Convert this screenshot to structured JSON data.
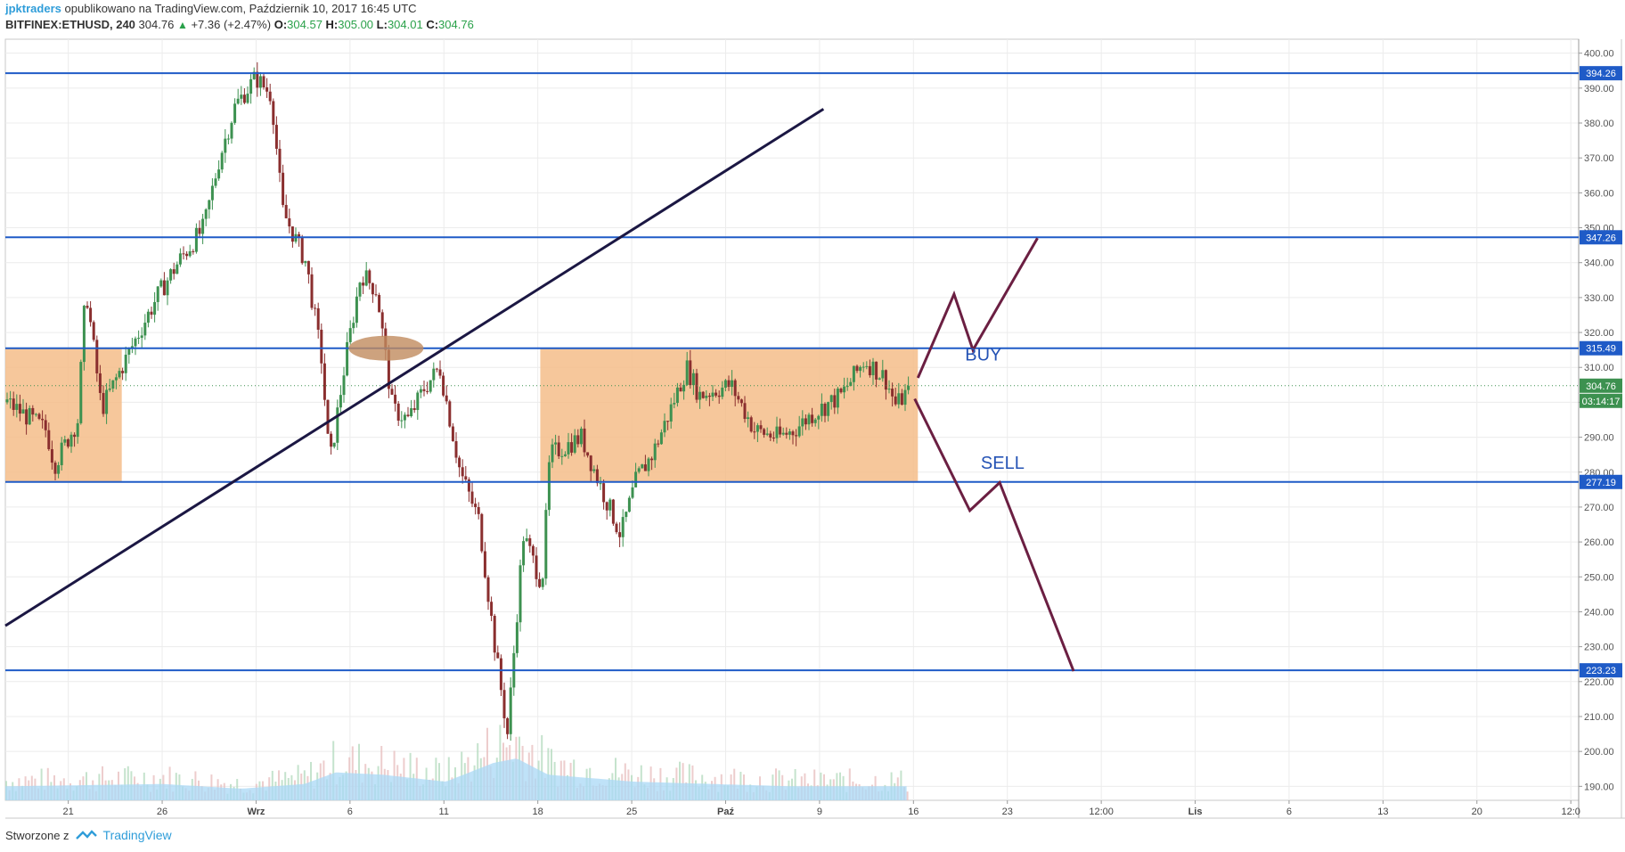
{
  "header": {
    "author": "jpktraders",
    "published": "opublikowano na TradingView.com, Październik 10, 2017 16:45 UTC",
    "symbol": "BITFINEX:ETHUSD, 240",
    "last": "304.76",
    "change": "+7.36 (+2.47%)",
    "o_label": "O:",
    "o": "304.57",
    "h_label": "H:",
    "h": "305.00",
    "l_label": "L:",
    "l": "304.01",
    "c_label": "C:",
    "c": "304.76"
  },
  "footer": {
    "made_with": "Stworzone z",
    "brand": "TradingView"
  },
  "chart_data": {
    "type": "candlestick",
    "symbol": "BITFINEX:ETHUSD",
    "interval": "240",
    "ylim": [
      186,
      404
    ],
    "y_ticks": [
      190,
      200,
      210,
      220,
      230,
      240,
      250,
      260,
      270,
      280,
      290,
      300,
      310,
      320,
      330,
      340,
      350,
      360,
      370,
      380,
      390,
      400
    ],
    "x_tick_labels": [
      "21",
      "26",
      "Wrz",
      "6",
      "11",
      "18",
      "25",
      "Paź",
      "9",
      "16",
      "23",
      "12:00",
      "Lis",
      "6",
      "13",
      "20",
      "12:0"
    ],
    "x_tick_bold": [
      "Wrz",
      "Paź",
      "Lis"
    ],
    "grid": true,
    "colors": {
      "up": "#3d9150",
      "down": "#8a2e2e",
      "hline": "#1f5bc7",
      "trendline": "#1b1743",
      "zone_fill": "#f5bd8a",
      "projection": "#6b1f42",
      "ellipse": "#c08b5e",
      "volume_ma": "#a9d8f5",
      "last_price_tag": "#3d9150"
    },
    "horizontal_levels": [
      394.26,
      347.26,
      315.49,
      277.19,
      223.23
    ],
    "last_price": 304.76,
    "countdown": "03:14:17",
    "trend_line": [
      [
        0,
        236
      ],
      [
        0.52,
        384
      ]
    ],
    "zones": [
      {
        "from": 0.0,
        "to": 0.074,
        "low": 277.19,
        "high": 315.49
      },
      {
        "from": 0.34,
        "to": 0.58,
        "low": 277.19,
        "high": 315.49
      }
    ],
    "projection_buy": [
      [
        0.58,
        307
      ],
      [
        0.603,
        331
      ],
      [
        0.615,
        315
      ],
      [
        0.656,
        347
      ]
    ],
    "projection_sell": [
      [
        0.578,
        301
      ],
      [
        0.613,
        269
      ],
      [
        0.632,
        277
      ],
      [
        0.679,
        223
      ]
    ],
    "annotations": [
      {
        "text": "BUY",
        "at": [
          0.61,
          312
        ]
      },
      {
        "text": "SELL",
        "at": [
          0.62,
          281
        ]
      }
    ],
    "anchors": [
      [
        0.0,
        300
      ],
      [
        0.025,
        292
      ],
      [
        0.03,
        282
      ],
      [
        0.045,
        295
      ],
      [
        0.05,
        333
      ],
      [
        0.06,
        298
      ],
      [
        0.075,
        312
      ],
      [
        0.095,
        330
      ],
      [
        0.11,
        341
      ],
      [
        0.125,
        350
      ],
      [
        0.135,
        370
      ],
      [
        0.145,
        385
      ],
      [
        0.158,
        393
      ],
      [
        0.168,
        388
      ],
      [
        0.175,
        355
      ],
      [
        0.19,
        340
      ],
      [
        0.2,
        312
      ],
      [
        0.205,
        282
      ],
      [
        0.215,
        312
      ],
      [
        0.225,
        337
      ],
      [
        0.235,
        332
      ],
      [
        0.245,
        298
      ],
      [
        0.255,
        295
      ],
      [
        0.265,
        304
      ],
      [
        0.275,
        310
      ],
      [
        0.288,
        280
      ],
      [
        0.3,
        266
      ],
      [
        0.31,
        230
      ],
      [
        0.318,
        205
      ],
      [
        0.328,
        262
      ],
      [
        0.34,
        248
      ],
      [
        0.345,
        285
      ],
      [
        0.365,
        290
      ],
      [
        0.378,
        275
      ],
      [
        0.39,
        262
      ],
      [
        0.4,
        278
      ],
      [
        0.41,
        285
      ],
      [
        0.42,
        296
      ],
      [
        0.432,
        310
      ],
      [
        0.44,
        302
      ],
      [
        0.46,
        305
      ],
      [
        0.475,
        292
      ],
      [
        0.49,
        290
      ],
      [
        0.5,
        292
      ],
      [
        0.51,
        296
      ],
      [
        0.53,
        302
      ],
      [
        0.545,
        312
      ],
      [
        0.558,
        307
      ],
      [
        0.565,
        299
      ],
      [
        0.575,
        304.76
      ]
    ],
    "volume_ma_anchors": [
      [
        0.0,
        0.3
      ],
      [
        0.1,
        0.35
      ],
      [
        0.15,
        0.25
      ],
      [
        0.19,
        0.35
      ],
      [
        0.21,
        0.6
      ],
      [
        0.24,
        0.55
      ],
      [
        0.28,
        0.4
      ],
      [
        0.31,
        0.8
      ],
      [
        0.325,
        0.9
      ],
      [
        0.345,
        0.55
      ],
      [
        0.4,
        0.4
      ],
      [
        0.45,
        0.35
      ],
      [
        0.5,
        0.3
      ],
      [
        0.575,
        0.3
      ]
    ]
  }
}
